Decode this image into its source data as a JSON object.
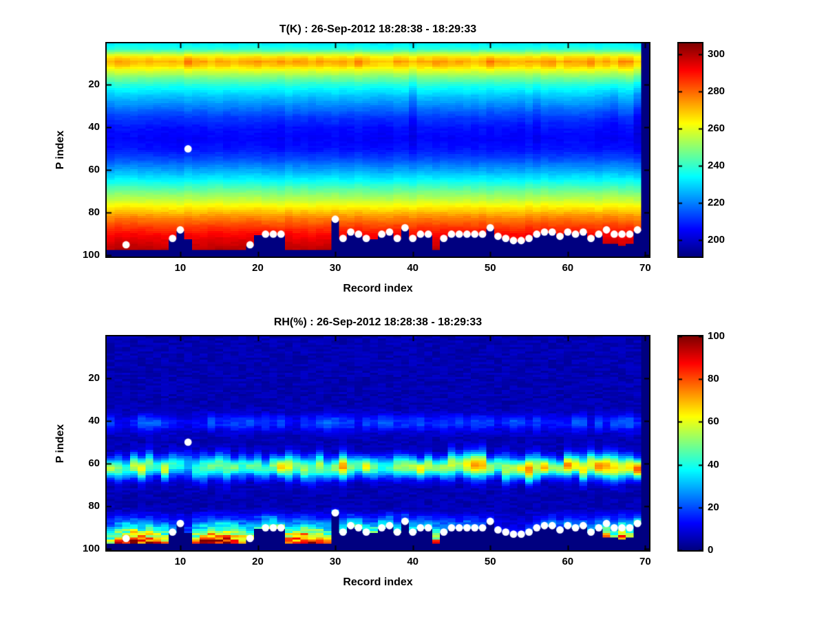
{
  "figure": {
    "background": "#ffffff",
    "axis_color": "#000000",
    "text_color": "#000000"
  },
  "overlay": {
    "dot_color": "#ffffff",
    "missing_color": "#000080",
    "surface_p_by_record": [
      98,
      98,
      98,
      98,
      98,
      98,
      98,
      98,
      93,
      89,
      93,
      98,
      98,
      98,
      98,
      98,
      98,
      98,
      96,
      91,
      91,
      91,
      91,
      98,
      98,
      98,
      98,
      98,
      98,
      84,
      93,
      90,
      91,
      93,
      93,
      91,
      90,
      93,
      88,
      93,
      91,
      91,
      98,
      93,
      91,
      91,
      91,
      91,
      91,
      88,
      92,
      93,
      94,
      94,
      93,
      91,
      90,
      90,
      92,
      90,
      91,
      90,
      93,
      91,
      95,
      95,
      96,
      95,
      89,
      1
    ],
    "dots": [
      [
        3,
        95
      ],
      [
        9,
        92
      ],
      [
        10,
        88
      ],
      [
        11,
        50
      ],
      [
        19,
        95
      ],
      [
        21,
        90
      ],
      [
        22,
        90
      ],
      [
        23,
        90
      ],
      [
        30,
        83
      ],
      [
        31,
        92
      ],
      [
        32,
        89
      ],
      [
        33,
        90
      ],
      [
        34,
        92
      ],
      [
        36,
        90
      ],
      [
        37,
        89
      ],
      [
        38,
        92
      ],
      [
        39,
        87
      ],
      [
        40,
        92
      ],
      [
        41,
        90
      ],
      [
        42,
        90
      ],
      [
        44,
        92
      ],
      [
        45,
        90
      ],
      [
        46,
        90
      ],
      [
        47,
        90
      ],
      [
        48,
        90
      ],
      [
        49,
        90
      ],
      [
        50,
        87
      ],
      [
        51,
        91
      ],
      [
        52,
        92
      ],
      [
        53,
        93
      ],
      [
        54,
        93
      ],
      [
        55,
        92
      ],
      [
        56,
        90
      ],
      [
        57,
        89
      ],
      [
        58,
        89
      ],
      [
        59,
        91
      ],
      [
        60,
        89
      ],
      [
        61,
        90
      ],
      [
        62,
        89
      ],
      [
        63,
        92
      ],
      [
        64,
        90
      ],
      [
        65,
        88
      ],
      [
        66,
        90
      ],
      [
        67,
        90
      ],
      [
        68,
        90
      ],
      [
        69,
        88
      ]
    ]
  },
  "chart_data": [
    {
      "type": "heatmap",
      "title": "T(K) : 26-Sep-2012 18:28:38 - 18:29:33",
      "xlabel": "Record index",
      "ylabel": "P index",
      "x_ticks": [
        10,
        20,
        30,
        40,
        50,
        60,
        70
      ],
      "y_ticks": [
        20,
        40,
        60,
        80,
        100
      ],
      "xlim": [
        0.5,
        70.5
      ],
      "ylim": [
        1,
        100
      ],
      "y_direction": "reverse",
      "n_records": 70,
      "n_levels": 100,
      "colormap": "jet",
      "clim": [
        191,
        306
      ],
      "colorbar_ticks": [
        200,
        220,
        240,
        260,
        280,
        300
      ],
      "temp_profile_K": [
        [
          1,
          233
        ],
        [
          3,
          238
        ],
        [
          5,
          252
        ],
        [
          7,
          265
        ],
        [
          9,
          272
        ],
        [
          11,
          268
        ],
        [
          13,
          260
        ],
        [
          16,
          250
        ],
        [
          20,
          238
        ],
        [
          25,
          228
        ],
        [
          30,
          220
        ],
        [
          35,
          212
        ],
        [
          40,
          207
        ],
        [
          45,
          205
        ],
        [
          50,
          207
        ],
        [
          55,
          214
        ],
        [
          58,
          220
        ],
        [
          62,
          228
        ],
        [
          66,
          237
        ],
        [
          70,
          247
        ],
        [
          74,
          256
        ],
        [
          78,
          266
        ],
        [
          82,
          276
        ],
        [
          86,
          284
        ],
        [
          90,
          291
        ],
        [
          94,
          296
        ],
        [
          97,
          299
        ]
      ],
      "warm_band_boost": [
        0,
        0,
        0,
        0,
        0,
        0,
        0,
        0,
        0,
        0,
        7,
        0,
        0,
        0,
        0,
        0,
        0,
        0,
        0,
        0,
        0,
        0,
        3,
        0,
        0,
        0,
        0,
        4,
        0,
        0,
        0,
        0,
        3,
        0,
        0,
        0,
        0,
        0,
        0,
        0,
        0,
        0,
        5,
        0,
        0,
        0,
        0,
        0,
        0,
        6,
        0,
        0,
        0,
        0,
        0,
        0,
        0,
        4,
        0,
        0,
        0,
        0,
        3,
        0,
        0,
        0,
        6,
        5,
        0,
        0
      ],
      "mid_cool": [
        0,
        0,
        0,
        0,
        0,
        0,
        0,
        0,
        0,
        0,
        0,
        0,
        0,
        0,
        0,
        0,
        0,
        0,
        0,
        0,
        0,
        0,
        0,
        0,
        0,
        0,
        0,
        0,
        0,
        0,
        0,
        0,
        0,
        0,
        0,
        0,
        0,
        0,
        0,
        4,
        0,
        0,
        0,
        0,
        0,
        0,
        0,
        0,
        0,
        0,
        0,
        0,
        0,
        0,
        0,
        2,
        0,
        0,
        0,
        0,
        0,
        0,
        0,
        0,
        3,
        5,
        0,
        0,
        6,
        0
      ]
    },
    {
      "type": "heatmap",
      "title": "RH(%) : 26-Sep-2012 18:28:38 - 18:29:33",
      "xlabel": "Record index",
      "ylabel": "P index",
      "x_ticks": [
        10,
        20,
        30,
        40,
        50,
        60,
        70
      ],
      "y_ticks": [
        20,
        40,
        60,
        80,
        100
      ],
      "xlim": [
        0.5,
        70.5
      ],
      "ylim": [
        1,
        100
      ],
      "y_direction": "reverse",
      "n_records": 70,
      "n_levels": 100,
      "colormap": "jet",
      "clim": [
        0,
        100
      ],
      "colorbar_ticks": [
        0,
        20,
        40,
        60,
        80,
        100
      ],
      "base_rh": 5,
      "moist_band": {
        "center_p": 61.5,
        "sigma": 3.2,
        "amplitude_by_record": [
          45,
          40,
          38,
          42,
          45,
          40,
          42,
          45,
          35,
          30,
          28,
          38,
          42,
          45,
          48,
          45,
          42,
          40,
          38,
          35,
          40,
          45,
          50,
          52,
          50,
          45,
          42,
          45,
          48,
          55,
          58,
          55,
          50,
          48,
          45,
          40,
          38,
          42,
          48,
          55,
          50,
          45,
          40,
          45,
          50,
          55,
          58,
          60,
          58,
          55,
          48,
          45,
          48,
          52,
          58,
          60,
          58,
          52,
          50,
          58,
          55,
          52,
          58,
          60,
          55,
          58,
          62,
          65,
          68,
          0
        ]
      },
      "mid_band": {
        "center_p": 41,
        "sigma": 2.8,
        "amplitude": 12
      },
      "surface_moisture_by_record": [
        55,
        80,
        90,
        100,
        85,
        90,
        75,
        70,
        30,
        20,
        15,
        70,
        95,
        100,
        100,
        95,
        85,
        80,
        60,
        40,
        55,
        60,
        50,
        85,
        95,
        100,
        90,
        85,
        70,
        60,
        40,
        45,
        50,
        40,
        45,
        50,
        55,
        40,
        35,
        45,
        40,
        35,
        75,
        30,
        25,
        25,
        30,
        25,
        20,
        15,
        12,
        10,
        10,
        12,
        15,
        15,
        25,
        30,
        25,
        30,
        28,
        25,
        30,
        35,
        70,
        45,
        85,
        60,
        45,
        0
      ]
    }
  ]
}
